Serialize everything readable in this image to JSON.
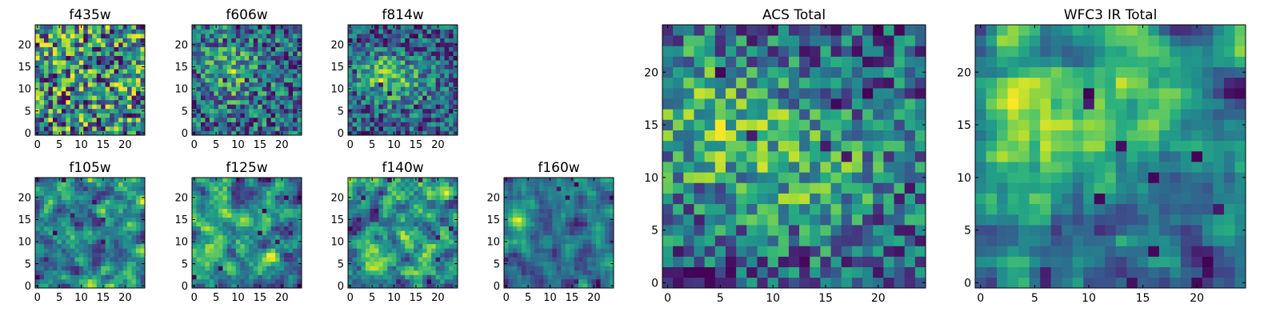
{
  "colormap": "viridis",
  "chart_data": [
    {
      "type": "heatmap",
      "title": "f435w",
      "grid_size": 25,
      "xlim": [
        0,
        24
      ],
      "ylim": [
        0,
        24
      ],
      "xticks": [
        "0",
        "5",
        "10",
        "15",
        "20"
      ],
      "yticks": [
        "0",
        "5",
        "10",
        "15",
        "20"
      ],
      "value_range": [
        0,
        1
      ],
      "structure": "noise",
      "seed": 11
    },
    {
      "type": "heatmap",
      "title": "f606w",
      "grid_size": 25,
      "xlim": [
        0,
        24
      ],
      "ylim": [
        0,
        24
      ],
      "xticks": [
        "0",
        "5",
        "10",
        "15",
        "20"
      ],
      "yticks": [
        "0",
        "5",
        "10",
        "15",
        "20"
      ],
      "value_range": [
        0,
        1
      ],
      "structure": "noise-with-center-blob",
      "seed": 23
    },
    {
      "type": "heatmap",
      "title": "f814w",
      "grid_size": 25,
      "xlim": [
        0,
        24
      ],
      "ylim": [
        0,
        24
      ],
      "xticks": [
        "0",
        "5",
        "10",
        "15",
        "20"
      ],
      "yticks": [
        "0",
        "5",
        "10",
        "15",
        "20"
      ],
      "value_range": [
        0,
        1
      ],
      "structure": "noise-with-bright-band",
      "seed": 37
    },
    {
      "type": "heatmap",
      "title": "f105w",
      "grid_size": 25,
      "xlim": [
        0,
        24
      ],
      "ylim": [
        0,
        24
      ],
      "xticks": [
        "0",
        "5",
        "10",
        "15",
        "20"
      ],
      "yticks": [
        "0",
        "5",
        "10",
        "15",
        "20"
      ],
      "value_range": [
        0,
        1
      ],
      "structure": "smooth",
      "seed": 41
    },
    {
      "type": "heatmap",
      "title": "f125w",
      "grid_size": 25,
      "xlim": [
        0,
        24
      ],
      "ylim": [
        0,
        24
      ],
      "xticks": [
        "0",
        "5",
        "10",
        "15",
        "20"
      ],
      "yticks": [
        "0",
        "5",
        "10",
        "15",
        "20"
      ],
      "value_range": [
        0,
        1
      ],
      "structure": "smooth",
      "seed": 53
    },
    {
      "type": "heatmap",
      "title": "f140w",
      "grid_size": 25,
      "xlim": [
        0,
        24
      ],
      "ylim": [
        0,
        24
      ],
      "xticks": [
        "0",
        "5",
        "10",
        "15",
        "20"
      ],
      "yticks": [
        "0",
        "5",
        "10",
        "15",
        "20"
      ],
      "value_range": [
        0,
        1
      ],
      "structure": "smooth",
      "seed": 67
    },
    {
      "type": "heatmap",
      "title": "f160w",
      "grid_size": 25,
      "xlim": [
        0,
        24
      ],
      "ylim": [
        0,
        24
      ],
      "xticks": [
        "0",
        "5",
        "10",
        "15",
        "20"
      ],
      "yticks": [
        "0",
        "5",
        "10",
        "15",
        "20"
      ],
      "value_range": [
        0,
        1
      ],
      "structure": "smooth-with-left-blob",
      "seed": 79
    },
    {
      "type": "heatmap",
      "title": "ACS Total",
      "grid_size": 25,
      "xlim": [
        0,
        24
      ],
      "ylim": [
        0,
        24
      ],
      "xticks": [
        "0",
        "5",
        "10",
        "15",
        "20"
      ],
      "yticks": [
        "0",
        "5",
        "10",
        "15",
        "20"
      ],
      "value_range": [
        0,
        1
      ],
      "structure": "blocky-bright-center",
      "seed": 97
    },
    {
      "type": "heatmap",
      "title": "WFC3 IR Total",
      "grid_size": 25,
      "xlim": [
        0,
        24
      ],
      "ylim": [
        0,
        24
      ],
      "xticks": [
        "0",
        "5",
        "10",
        "15",
        "20"
      ],
      "yticks": [
        "0",
        "5",
        "10",
        "15",
        "20"
      ],
      "value_range": [
        0,
        1
      ],
      "structure": "blocky-bright-upper-left",
      "seed": 113
    }
  ]
}
